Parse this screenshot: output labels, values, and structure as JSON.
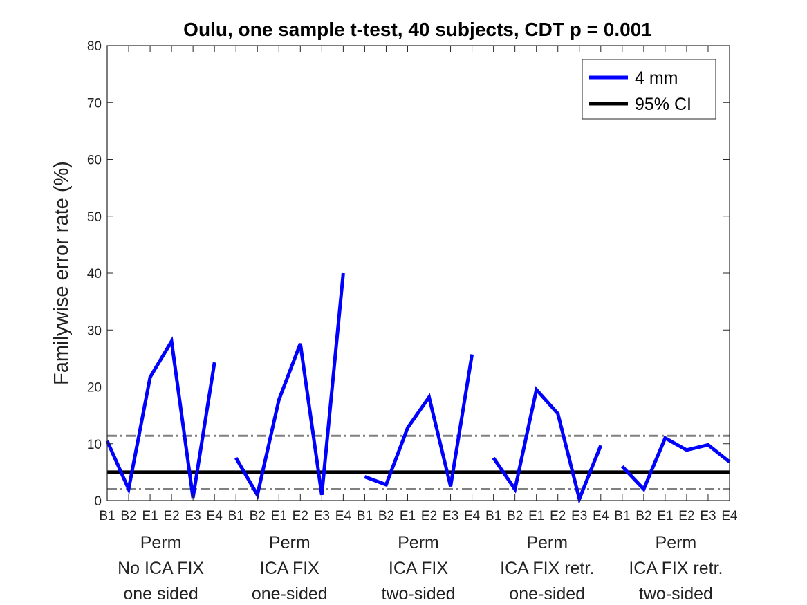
{
  "chart_data": {
    "type": "line",
    "title": "Oulu, one sample t-test, 40 subjects, CDT p = 0.001",
    "ylabel": "Familywise error rate (%)",
    "xlabel": "",
    "ylim": [
      0,
      80
    ],
    "yticks": [
      0,
      10,
      20,
      30,
      40,
      50,
      60,
      70,
      80
    ],
    "x_tick_labels": [
      "B1",
      "B2",
      "E1",
      "E2",
      "E3",
      "E4",
      "B1",
      "B2",
      "E1",
      "E2",
      "E3",
      "E4",
      "B1",
      "B2",
      "E1",
      "E2",
      "E3",
      "E4",
      "B1",
      "B2",
      "E1",
      "E2",
      "E3",
      "E4",
      "B1",
      "B2",
      "E1",
      "E2",
      "E3",
      "E4"
    ],
    "groups": [
      {
        "lines": [
          "Perm",
          "No ICA FIX",
          "one sided"
        ]
      },
      {
        "lines": [
          "Perm",
          "ICA FIX",
          "one-sided"
        ]
      },
      {
        "lines": [
          "Perm",
          "ICA FIX",
          "two-sided"
        ]
      },
      {
        "lines": [
          "Perm",
          "ICA FIX retr.",
          "one-sided"
        ]
      },
      {
        "lines": [
          "Perm",
          "ICA FIX retr.",
          "two-sided"
        ]
      }
    ],
    "series": [
      {
        "name": "4 mm",
        "color": "#0000ff",
        "segments": [
          [
            10.5,
            2.0,
            21.7,
            28.0,
            0.5,
            24.3
          ],
          [
            7.5,
            1.0,
            17.7,
            27.6,
            1.0,
            40.0
          ],
          [
            4.2,
            2.8,
            12.8,
            18.2,
            2.5,
            25.7
          ],
          [
            7.5,
            2.0,
            19.5,
            15.3,
            0.3,
            9.7
          ],
          [
            6.0,
            2.0,
            11.0,
            8.9,
            9.8,
            6.8
          ]
        ]
      }
    ],
    "ci_line": {
      "name": "95% CI",
      "value": 5.0,
      "color": "#000000"
    },
    "ci_bounds": {
      "lower": 2.0,
      "upper": 11.4,
      "color": "#808080",
      "style": "dash-dot"
    },
    "legend": {
      "position": "top-right"
    },
    "grid": false
  }
}
